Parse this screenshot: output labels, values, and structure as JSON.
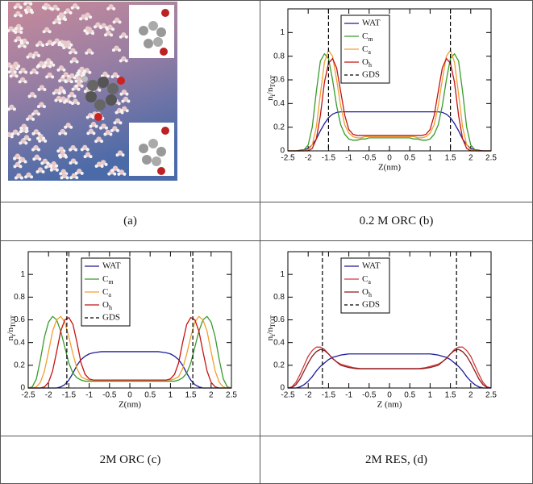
{
  "table": {
    "captions": [
      "(a)",
      "0.2 M ORC (b)",
      "2M ORC (c)",
      "2M RES, (d)"
    ]
  },
  "chart_data": [
    {
      "type": "line",
      "x_label": "Z(nm)",
      "y_label": "ni/nTOT",
      "legend": "upper center",
      "xlim": [
        -2.5,
        2.5
      ],
      "ylim": [
        0,
        1.2
      ],
      "xticks": [
        -2.5,
        -2,
        -1.5,
        -1,
        -0.5,
        0,
        0.5,
        1,
        1.5,
        2,
        2.5
      ],
      "yticks": [
        0,
        0.2,
        0.4,
        0.6,
        0.8,
        1
      ],
      "x": [
        -2.5,
        -2.4,
        -2.3,
        -2.2,
        -2.1,
        -2,
        -1.9,
        -1.8,
        -1.7,
        -1.6,
        -1.5,
        -1.4,
        -1.3,
        -1.2,
        -1.1,
        -1,
        -0.9,
        -0.8,
        -0.7,
        -0.6,
        -0.5,
        -0.4,
        -0.3,
        -0.2,
        -0.1,
        0,
        0.1,
        0.2,
        0.3,
        0.4,
        0.5,
        0.6,
        0.7,
        0.8,
        0.9,
        1,
        1.1,
        1.2,
        1.3,
        1.4,
        1.5,
        1.6,
        1.7,
        1.8,
        1.9,
        2,
        2.1,
        2.2,
        2.3,
        2.4,
        2.5
      ],
      "series": [
        {
          "name": "WAT",
          "color": "#1c1c9a",
          "values": [
            0,
            0,
            0,
            0.005,
            0.01,
            0.02,
            0.05,
            0.1,
            0.17,
            0.23,
            0.28,
            0.31,
            0.325,
            0.33,
            0.33,
            0.33,
            0.33,
            0.33,
            0.33,
            0.33,
            0.33,
            0.33,
            0.33,
            0.33,
            0.33,
            0.33,
            0.33,
            0.33,
            0.33,
            0.33,
            0.33,
            0.33,
            0.33,
            0.33,
            0.33,
            0.33,
            0.33,
            0.33,
            0.325,
            0.31,
            0.28,
            0.23,
            0.17,
            0.1,
            0.05,
            0.02,
            0.01,
            0.005,
            0,
            0,
            0
          ]
        },
        {
          "name": "Cm",
          "color": "#3a9a2e",
          "values": [
            0,
            0,
            0,
            0,
            0.01,
            0.05,
            0.2,
            0.5,
            0.76,
            0.82,
            0.78,
            0.6,
            0.38,
            0.22,
            0.14,
            0.1,
            0.09,
            0.09,
            0.1,
            0.1,
            0.11,
            0.11,
            0.11,
            0.11,
            0.11,
            0.11,
            0.11,
            0.11,
            0.11,
            0.11,
            0.11,
            0.1,
            0.1,
            0.09,
            0.09,
            0.1,
            0.14,
            0.22,
            0.38,
            0.6,
            0.78,
            0.82,
            0.76,
            0.5,
            0.2,
            0.05,
            0.01,
            0,
            0,
            0,
            0
          ]
        },
        {
          "name": "Ca",
          "color": "#f0a030",
          "values": [
            0,
            0,
            0,
            0,
            0,
            0.01,
            0.05,
            0.2,
            0.48,
            0.75,
            0.85,
            0.8,
            0.6,
            0.38,
            0.22,
            0.15,
            0.12,
            0.11,
            0.11,
            0.12,
            0.12,
            0.12,
            0.12,
            0.12,
            0.12,
            0.12,
            0.12,
            0.12,
            0.12,
            0.12,
            0.12,
            0.12,
            0.11,
            0.11,
            0.12,
            0.15,
            0.22,
            0.38,
            0.6,
            0.8,
            0.85,
            0.75,
            0.48,
            0.2,
            0.05,
            0.01,
            0,
            0,
            0,
            0,
            0
          ]
        },
        {
          "name": "Oh",
          "color": "#c41414",
          "values": [
            0,
            0,
            0,
            0,
            0,
            0,
            0.02,
            0.1,
            0.3,
            0.58,
            0.74,
            0.78,
            0.7,
            0.5,
            0.3,
            0.18,
            0.14,
            0.13,
            0.13,
            0.13,
            0.13,
            0.13,
            0.13,
            0.13,
            0.13,
            0.13,
            0.13,
            0.13,
            0.13,
            0.13,
            0.13,
            0.13,
            0.13,
            0.13,
            0.14,
            0.18,
            0.3,
            0.5,
            0.7,
            0.78,
            0.74,
            0.58,
            0.3,
            0.1,
            0.02,
            0,
            0,
            0,
            0,
            0,
            0
          ]
        },
        {
          "name": "GDS",
          "color": "#000000",
          "dash": true,
          "x_positions": [
            -1.5,
            1.5
          ]
        }
      ]
    },
    {
      "type": "line",
      "x_label": "Z(nm)",
      "y_label": "ni/nTOT",
      "legend": "upper center",
      "xlim": [
        -2.5,
        2.5
      ],
      "ylim": [
        0,
        1.2
      ],
      "xticks": [
        -2.5,
        -2,
        -1.5,
        -1,
        -0.5,
        0,
        0.5,
        1,
        1.5,
        2,
        2.5
      ],
      "yticks": [
        0,
        0.2,
        0.4,
        0.6,
        0.8,
        1
      ],
      "x": [
        -2.5,
        -2.4,
        -2.3,
        -2.2,
        -2.1,
        -2,
        -1.9,
        -1.8,
        -1.7,
        -1.6,
        -1.5,
        -1.4,
        -1.3,
        -1.2,
        -1.1,
        -1,
        -0.9,
        -0.8,
        -0.7,
        -0.6,
        -0.5,
        -0.4,
        -0.3,
        -0.2,
        -0.1,
        0,
        0.1,
        0.2,
        0.3,
        0.4,
        0.5,
        0.6,
        0.7,
        0.8,
        0.9,
        1,
        1.1,
        1.2,
        1.3,
        1.4,
        1.5,
        1.6,
        1.7,
        1.8,
        1.9,
        2,
        2.1,
        2.2,
        2.3,
        2.4,
        2.5
      ],
      "series": [
        {
          "name": "WAT",
          "color": "#1c1c9a",
          "values": [
            0,
            0,
            0,
            0,
            0,
            0,
            0,
            0,
            0.01,
            0.03,
            0.07,
            0.13,
            0.2,
            0.25,
            0.28,
            0.3,
            0.31,
            0.315,
            0.32,
            0.32,
            0.32,
            0.32,
            0.32,
            0.32,
            0.32,
            0.32,
            0.32,
            0.32,
            0.32,
            0.32,
            0.32,
            0.32,
            0.32,
            0.315,
            0.31,
            0.3,
            0.28,
            0.25,
            0.2,
            0.13,
            0.07,
            0.03,
            0.01,
            0,
            0,
            0,
            0,
            0,
            0,
            0,
            0
          ]
        },
        {
          "name": "Cm",
          "color": "#3a9a2e",
          "values": [
            0,
            0.01,
            0.08,
            0.25,
            0.45,
            0.58,
            0.63,
            0.6,
            0.5,
            0.36,
            0.22,
            0.13,
            0.09,
            0.07,
            0.06,
            0.06,
            0.06,
            0.06,
            0.06,
            0.06,
            0.06,
            0.06,
            0.06,
            0.06,
            0.06,
            0.06,
            0.06,
            0.06,
            0.06,
            0.06,
            0.06,
            0.06,
            0.06,
            0.06,
            0.06,
            0.06,
            0.06,
            0.07,
            0.09,
            0.13,
            0.22,
            0.36,
            0.5,
            0.6,
            0.63,
            0.58,
            0.45,
            0.25,
            0.08,
            0.01,
            0
          ]
        },
        {
          "name": "Ca",
          "color": "#f0a030",
          "values": [
            0,
            0,
            0.01,
            0.05,
            0.15,
            0.32,
            0.5,
            0.6,
            0.63,
            0.58,
            0.45,
            0.3,
            0.17,
            0.1,
            0.08,
            0.07,
            0.07,
            0.07,
            0.07,
            0.07,
            0.07,
            0.07,
            0.07,
            0.07,
            0.07,
            0.07,
            0.07,
            0.07,
            0.07,
            0.07,
            0.07,
            0.07,
            0.07,
            0.07,
            0.07,
            0.07,
            0.08,
            0.1,
            0.17,
            0.3,
            0.45,
            0.58,
            0.63,
            0.6,
            0.5,
            0.32,
            0.15,
            0.05,
            0.01,
            0,
            0
          ]
        },
        {
          "name": "Oh",
          "color": "#c41414",
          "values": [
            0,
            0,
            0,
            0,
            0.01,
            0.05,
            0.15,
            0.32,
            0.5,
            0.6,
            0.62,
            0.56,
            0.4,
            0.22,
            0.12,
            0.08,
            0.07,
            0.07,
            0.07,
            0.07,
            0.07,
            0.07,
            0.07,
            0.07,
            0.07,
            0.07,
            0.07,
            0.07,
            0.07,
            0.07,
            0.07,
            0.07,
            0.07,
            0.07,
            0.07,
            0.08,
            0.12,
            0.22,
            0.4,
            0.56,
            0.62,
            0.6,
            0.5,
            0.32,
            0.15,
            0.05,
            0.01,
            0,
            0,
            0,
            0
          ]
        },
        {
          "name": "GDS",
          "color": "#000000",
          "dash": true,
          "x_positions": [
            -1.55,
            1.55
          ]
        }
      ]
    },
    {
      "type": "line",
      "x_label": "Z (nm)",
      "y_label": "ni/nTOT",
      "legend": "upper center",
      "xlim": [
        -2.5,
        2.5
      ],
      "ylim": [
        0,
        1.2
      ],
      "xticks": [
        -2.5,
        -2,
        -1.5,
        -1,
        -0.5,
        0,
        0.5,
        1,
        1.5,
        2,
        2.5
      ],
      "yticks": [
        0,
        0.2,
        0.4,
        0.6,
        0.8,
        1
      ],
      "x": [
        -2.5,
        -2.4,
        -2.3,
        -2.2,
        -2.1,
        -2,
        -1.9,
        -1.8,
        -1.7,
        -1.6,
        -1.5,
        -1.4,
        -1.3,
        -1.2,
        -1.1,
        -1,
        -0.9,
        -0.8,
        -0.7,
        -0.6,
        -0.5,
        -0.4,
        -0.3,
        -0.2,
        -0.1,
        0,
        0.1,
        0.2,
        0.3,
        0.4,
        0.5,
        0.6,
        0.7,
        0.8,
        0.9,
        1,
        1.1,
        1.2,
        1.3,
        1.4,
        1.5,
        1.6,
        1.7,
        1.8,
        1.9,
        2,
        2.1,
        2.2,
        2.3,
        2.4,
        2.5
      ],
      "series": [
        {
          "name": "WAT",
          "color": "#1c1c9a",
          "values": [
            0,
            0,
            0,
            0.01,
            0.03,
            0.06,
            0.1,
            0.15,
            0.19,
            0.22,
            0.25,
            0.27,
            0.28,
            0.29,
            0.295,
            0.3,
            0.3,
            0.3,
            0.3,
            0.3,
            0.3,
            0.3,
            0.3,
            0.3,
            0.3,
            0.3,
            0.3,
            0.3,
            0.3,
            0.3,
            0.3,
            0.3,
            0.3,
            0.3,
            0.3,
            0.3,
            0.295,
            0.29,
            0.28,
            0.27,
            0.25,
            0.22,
            0.19,
            0.15,
            0.1,
            0.06,
            0.03,
            0.01,
            0,
            0,
            0
          ]
        },
        {
          "name": "Ca",
          "color": "#d03a3a",
          "values": [
            0,
            0.01,
            0.05,
            0.12,
            0.2,
            0.28,
            0.33,
            0.36,
            0.36,
            0.34,
            0.3,
            0.26,
            0.23,
            0.21,
            0.2,
            0.19,
            0.18,
            0.175,
            0.17,
            0.17,
            0.17,
            0.17,
            0.17,
            0.17,
            0.17,
            0.17,
            0.17,
            0.17,
            0.17,
            0.17,
            0.17,
            0.17,
            0.17,
            0.175,
            0.18,
            0.19,
            0.2,
            0.21,
            0.23,
            0.26,
            0.3,
            0.34,
            0.36,
            0.36,
            0.33,
            0.28,
            0.2,
            0.12,
            0.05,
            0.01,
            0
          ]
        },
        {
          "name": "Oh",
          "color": "#8e1a1a",
          "values": [
            0,
            0.005,
            0.03,
            0.08,
            0.15,
            0.22,
            0.28,
            0.32,
            0.34,
            0.33,
            0.3,
            0.26,
            0.23,
            0.2,
            0.19,
            0.18,
            0.175,
            0.17,
            0.17,
            0.17,
            0.17,
            0.17,
            0.17,
            0.17,
            0.17,
            0.17,
            0.17,
            0.17,
            0.17,
            0.17,
            0.17,
            0.17,
            0.17,
            0.17,
            0.175,
            0.18,
            0.19,
            0.2,
            0.23,
            0.26,
            0.3,
            0.33,
            0.34,
            0.32,
            0.28,
            0.22,
            0.15,
            0.08,
            0.03,
            0.005,
            0
          ]
        },
        {
          "name": "GDS",
          "color": "#000000",
          "dash": true,
          "x_positions": [
            -1.65,
            1.65
          ]
        }
      ]
    }
  ]
}
